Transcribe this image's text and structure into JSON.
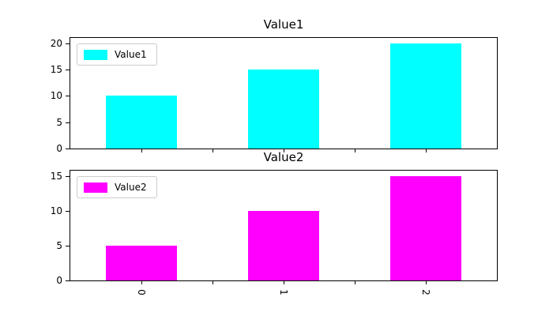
{
  "figure": {
    "background": "#ffffff"
  },
  "style": {
    "spine_color": "#000000",
    "text_color": "#000000",
    "legend_border_color": "#cccccc",
    "legend_bg": "#ffffff"
  },
  "chart_data": [
    {
      "type": "bar",
      "title": "Value1",
      "categories": [
        "0",
        "1",
        "2"
      ],
      "series": [
        {
          "name": "Value1",
          "values": [
            10,
            15,
            20
          ]
        }
      ],
      "bar_color": "#00ffff",
      "bar_width": 0.5,
      "xlim": [
        -0.5,
        2.5
      ],
      "ylim": [
        0,
        21
      ],
      "yticks": [
        0,
        5,
        10,
        15,
        20
      ],
      "xticks": [
        {
          "pos": 0,
          "label": "0"
        },
        {
          "pos": 0.5,
          "label": ""
        },
        {
          "pos": 1,
          "label": "1"
        },
        {
          "pos": 1.5,
          "label": ""
        },
        {
          "pos": 2,
          "label": "2"
        }
      ],
      "show_xtick_labels": false,
      "xtick_label_rotation_deg": 90,
      "legend": {
        "label": "Value1",
        "swatch_color": "#00ffff",
        "position": "upper left"
      },
      "grid": false
    },
    {
      "type": "bar",
      "title": "Value2",
      "categories": [
        "0",
        "1",
        "2"
      ],
      "series": [
        {
          "name": "Value2",
          "values": [
            5,
            10,
            15
          ]
        }
      ],
      "bar_color": "#ff00ff",
      "bar_width": 0.5,
      "xlim": [
        -0.5,
        2.5
      ],
      "ylim": [
        0,
        15.75
      ],
      "yticks": [
        0,
        5,
        10,
        15
      ],
      "xticks": [
        {
          "pos": 0,
          "label": "0"
        },
        {
          "pos": 0.5,
          "label": ""
        },
        {
          "pos": 1,
          "label": "1"
        },
        {
          "pos": 1.5,
          "label": ""
        },
        {
          "pos": 2,
          "label": "2"
        }
      ],
      "show_xtick_labels": true,
      "xtick_label_rotation_deg": 90,
      "legend": {
        "label": "Value2",
        "swatch_color": "#ff00ff",
        "position": "upper left"
      },
      "grid": false
    }
  ]
}
